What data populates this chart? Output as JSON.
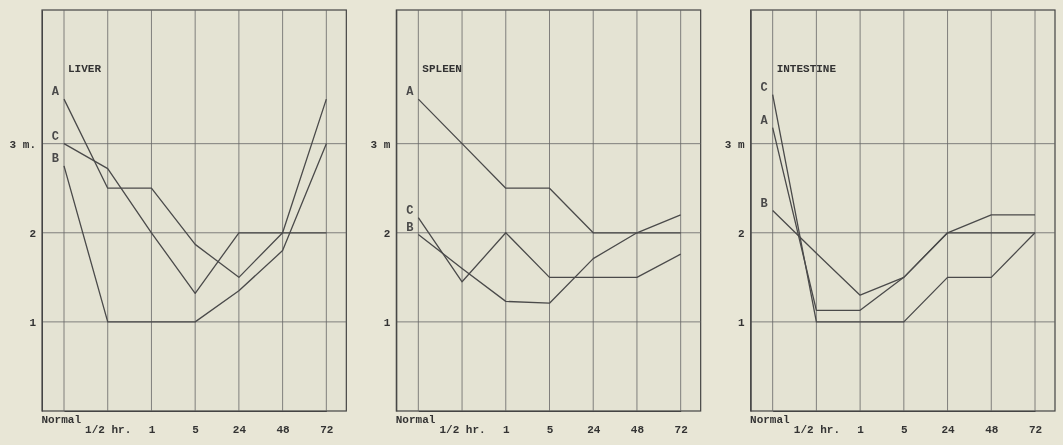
{
  "chart_data": [
    {
      "type": "line",
      "title": "LIVER",
      "categories": [
        "Normal",
        "1/2 hr.",
        "1",
        "5",
        "24",
        "48",
        "72"
      ],
      "ylim": [
        0,
        4.5
      ],
      "yticks": [
        {
          "value": 1,
          "label": "1"
        },
        {
          "value": 2,
          "label": "2"
        },
        {
          "value": 3,
          "label": "3 m."
        }
      ],
      "grid": true,
      "line_style": "solid",
      "series": [
        {
          "name": "A",
          "color": "#4a4a4a",
          "values": [
            3.5,
            2.5,
            2.5,
            1.87,
            1.5,
            2.0,
            3.5
          ]
        },
        {
          "name": "B",
          "color": "#4a4a4a",
          "values": [
            2.75,
            1.0,
            1.0,
            1.0,
            1.35,
            1.8,
            3.0
          ]
        },
        {
          "name": "C",
          "color": "#4a4a4a",
          "values": [
            3.0,
            2.72,
            2.0,
            1.32,
            2.0,
            2.0,
            2.0
          ]
        }
      ]
    },
    {
      "type": "line",
      "title": "SPLEEN",
      "categories": [
        "Normal",
        "1/2 hr.",
        "1",
        "5",
        "24",
        "48",
        "72"
      ],
      "ylim": [
        0,
        4.5
      ],
      "yticks": [
        {
          "value": 1,
          "label": "1"
        },
        {
          "value": 2,
          "label": "2"
        },
        {
          "value": 3,
          "label": "3 m"
        }
      ],
      "grid": true,
      "line_style": "solid",
      "series": [
        {
          "name": "A",
          "color": "#4a4a4a",
          "values": [
            3.5,
            3.0,
            2.5,
            2.5,
            2.0,
            2.0,
            2.0
          ]
        },
        {
          "name": "B",
          "color": "#4a4a4a",
          "values": [
            1.98,
            1.6,
            1.23,
            1.21,
            1.71,
            2.0,
            2.2
          ]
        },
        {
          "name": "C",
          "color": "#4a4a4a",
          "values": [
            2.17,
            1.45,
            2.0,
            1.5,
            1.5,
            1.5,
            1.76
          ]
        }
      ]
    },
    {
      "type": "line",
      "title": "INTESTINE",
      "categories": [
        "Normal",
        "1/2 hr.",
        "1",
        "5",
        "24",
        "48",
        "72"
      ],
      "ylim": [
        0,
        4.5
      ],
      "yticks": [
        {
          "value": 1,
          "label": "1"
        },
        {
          "value": 2,
          "label": "2"
        },
        {
          "value": 3,
          "label": "3 m"
        }
      ],
      "grid": true,
      "line_style": "solid",
      "series": [
        {
          "name": "A",
          "color": "#4a4a4a",
          "values": [
            3.18,
            1.13,
            1.13,
            1.5,
            2.0,
            2.2,
            2.2
          ]
        },
        {
          "name": "B",
          "color": "#4a4a4a",
          "values": [
            2.25,
            1.77,
            1.3,
            1.5,
            2.0,
            2.0,
            2.0
          ]
        },
        {
          "name": "C",
          "color": "#4a4a4a",
          "values": [
            3.55,
            1.0,
            1.0,
            1.0,
            1.5,
            1.5,
            2.0
          ]
        }
      ]
    }
  ]
}
